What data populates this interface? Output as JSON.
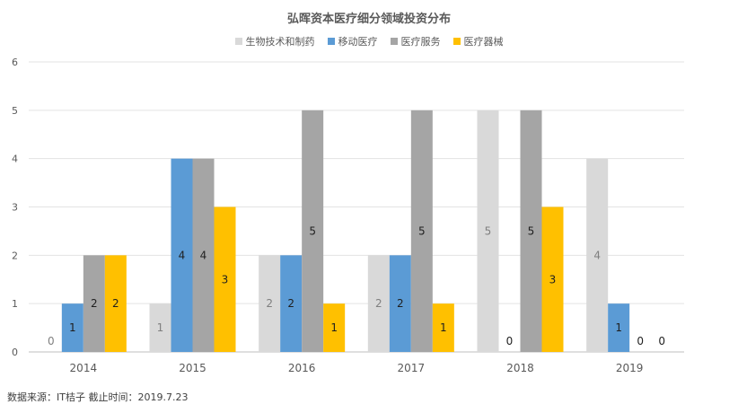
{
  "chart_data": {
    "type": "bar",
    "title": "弘晖资本医疗细分领域投资分布",
    "categories": [
      "2014",
      "2015",
      "2016",
      "2017",
      "2018",
      "2019"
    ],
    "series": [
      {
        "name": "生物技术和制药",
        "color": "#d9d9d9",
        "values": [
          0,
          1,
          2,
          2,
          5,
          4
        ]
      },
      {
        "name": "移动医疗",
        "color": "#5b9bd5",
        "values": [
          1,
          4,
          2,
          2,
          0,
          1
        ]
      },
      {
        "name": "医疗服务",
        "color": "#a5a5a5",
        "values": [
          2,
          4,
          5,
          5,
          5,
          0
        ]
      },
      {
        "name": "医疗器械",
        "color": "#ffc000",
        "values": [
          2,
          3,
          1,
          1,
          3,
          0
        ]
      }
    ],
    "ylim": [
      0,
      6
    ],
    "yticks": [
      0,
      1,
      2,
      3,
      4,
      5,
      6
    ],
    "grid": true,
    "legend_position": "top"
  },
  "source_note": "数据来源：IT桔子  截止时间：2019.7.23"
}
